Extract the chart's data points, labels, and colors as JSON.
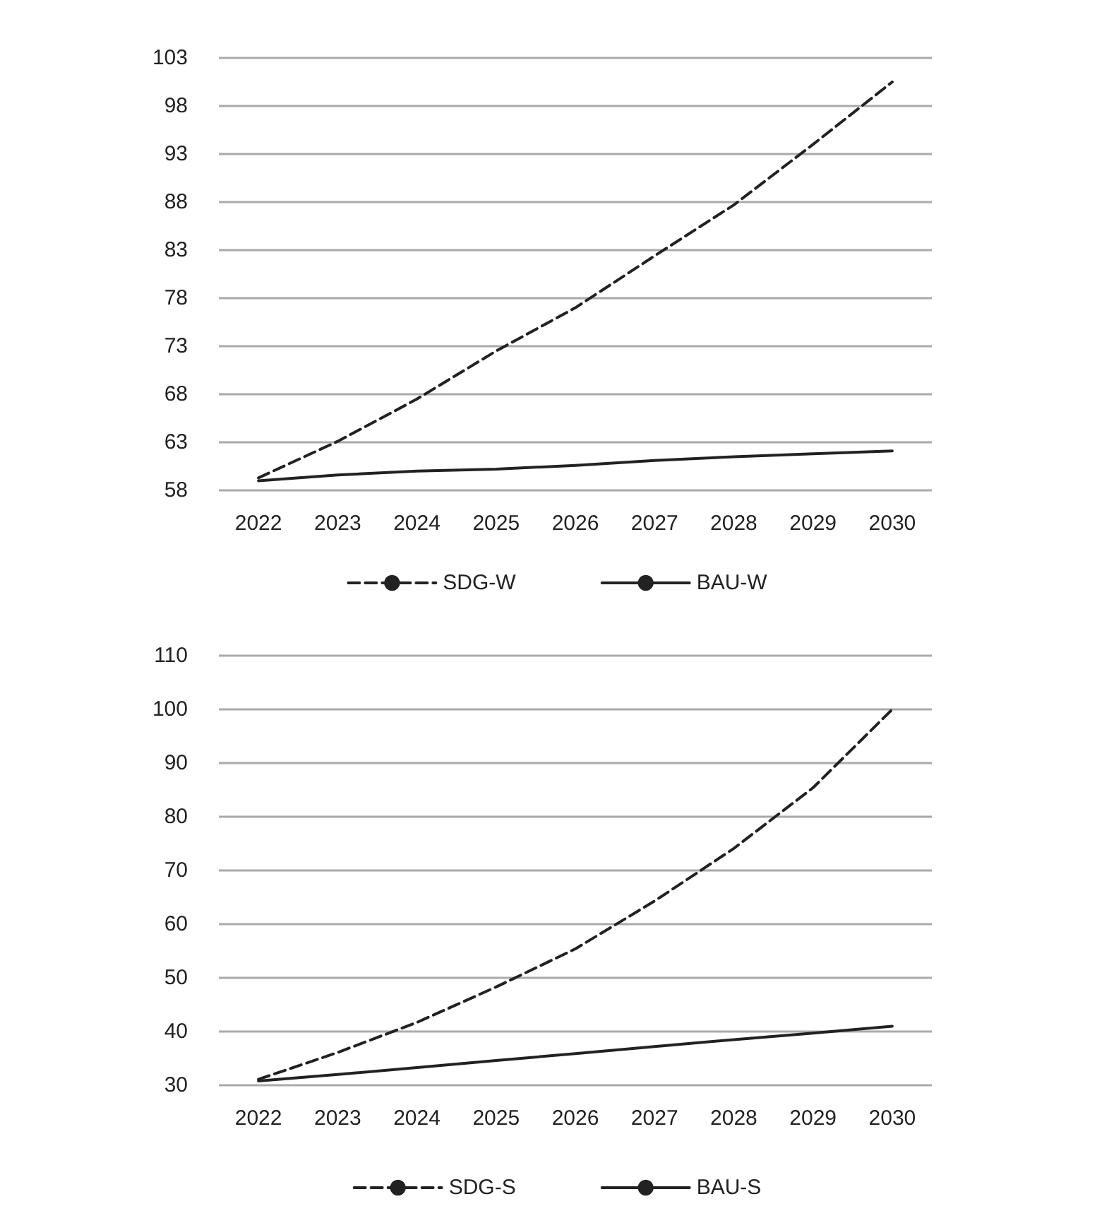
{
  "chart_data": [
    {
      "type": "line",
      "categories": [
        "2022",
        "2023",
        "2024",
        "2025",
        "2026",
        "2027",
        "2028",
        "2029",
        "2030"
      ],
      "series": [
        {
          "name": "SDG-W",
          "color": "#222222",
          "line_style": "dashed",
          "values": [
            59.3,
            63.1,
            67.5,
            72.5,
            77,
            82.4,
            87.7,
            94,
            100.5
          ]
        },
        {
          "name": "BAU-W",
          "color": "#222222",
          "line_style": "solid",
          "values": [
            59,
            59.6,
            60,
            60.2,
            60.6,
            61.1,
            61.5,
            61.8,
            62.1
          ]
        }
      ],
      "ylim": [
        58,
        103
      ],
      "yticks": [
        58,
        63,
        68,
        73,
        78,
        83,
        88,
        93,
        98,
        103
      ],
      "grid": "y",
      "legend": "bottom",
      "marker": "none"
    },
    {
      "type": "line",
      "categories": [
        "2022",
        "2023",
        "2024",
        "2025",
        "2026",
        "2027",
        "2028",
        "2029",
        "2030"
      ],
      "series": [
        {
          "name": "SDG-S",
          "color": "#222222",
          "line_style": "dashed",
          "values": [
            31.1,
            36.1,
            41.7,
            48.3,
            55.4,
            64.3,
            74.1,
            85.4,
            100
          ]
        },
        {
          "name": "BAU-S",
          "color": "#222222",
          "line_style": "solid",
          "values": [
            30.8,
            32,
            33.3,
            34.6,
            35.9,
            37.2,
            38.5,
            39.7,
            41
          ]
        }
      ],
      "ylim": [
        30,
        110
      ],
      "yticks": [
        30,
        40,
        50,
        60,
        70,
        80,
        90,
        100,
        110
      ],
      "grid": "y",
      "legend": "bottom",
      "marker": "none"
    }
  ]
}
